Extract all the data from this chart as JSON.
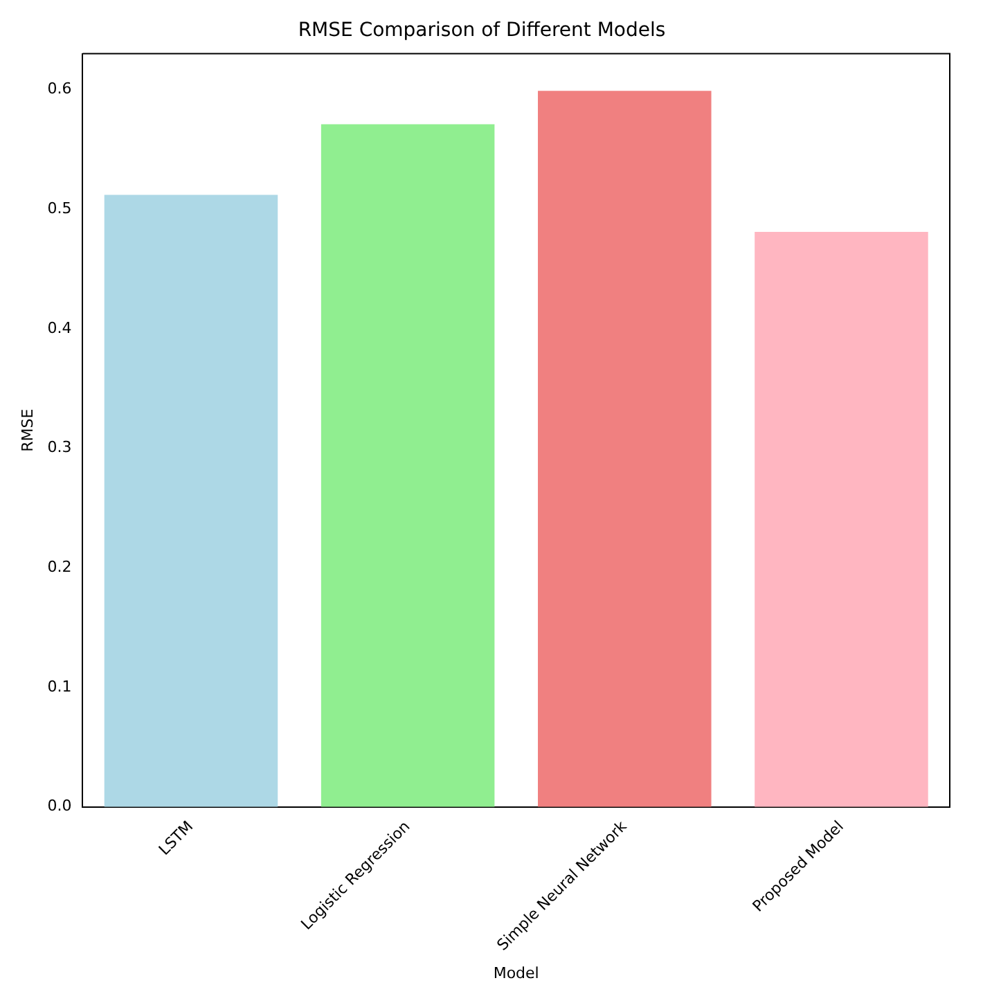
{
  "chart_data": {
    "type": "bar",
    "title": "RMSE Comparison of Different Models",
    "xlabel": "Model",
    "ylabel": "RMSE",
    "categories": [
      "LSTM",
      "Logistic Regression",
      "Simple Neural Network",
      "Proposed Model"
    ],
    "values": [
      0.512,
      0.571,
      0.599,
      0.481
    ],
    "colors": [
      "#add8e6",
      "#90ee90",
      "#f08080",
      "#ffb6c1"
    ],
    "ylim": [
      0,
      0.63
    ],
    "yticks": [
      {
        "value": 0,
        "label": "0.0"
      },
      {
        "value": 0.1,
        "label": "0.1"
      },
      {
        "value": 0.2,
        "label": "0.2"
      },
      {
        "value": 0.3,
        "label": "0.3"
      },
      {
        "value": 0.4,
        "label": "0.4"
      },
      {
        "value": 0.5,
        "label": "0.5"
      },
      {
        "value": 0.6,
        "label": "0.6"
      }
    ],
    "grid": false,
    "legend": false
  }
}
